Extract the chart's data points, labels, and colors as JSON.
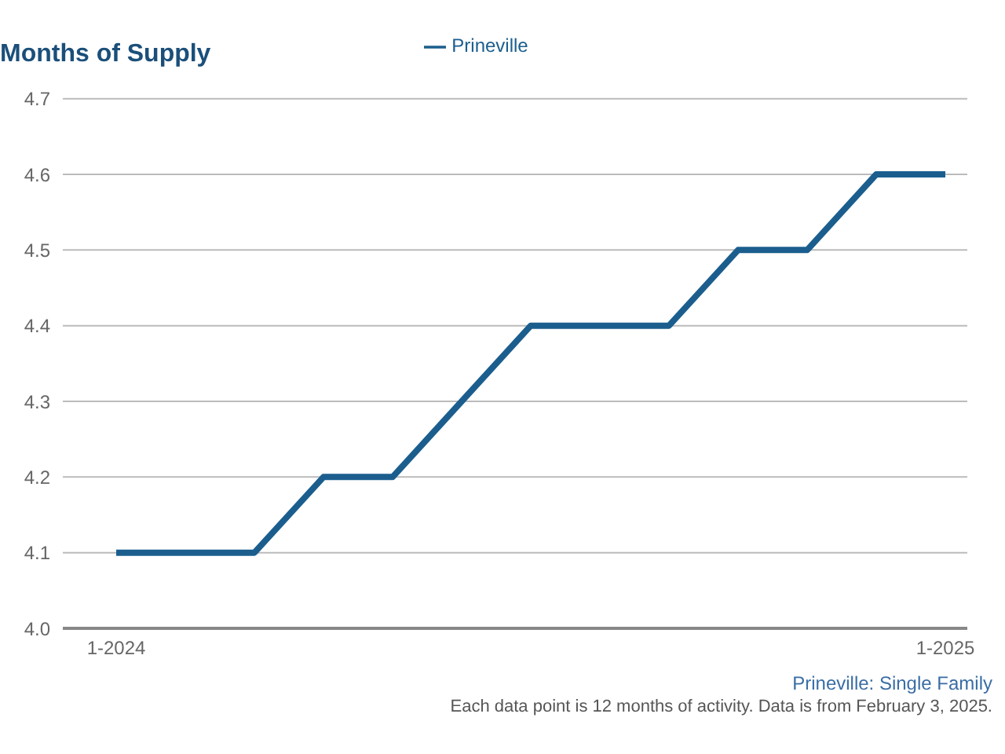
{
  "chart_data": {
    "type": "line",
    "title": "Months of Supply",
    "categories": [
      "1-2024",
      null,
      null,
      null,
      null,
      null,
      null,
      null,
      null,
      null,
      null,
      null,
      "1-2025"
    ],
    "series": [
      {
        "name": "Prineville",
        "color": "#1b5e8e",
        "values": [
          4.1,
          4.1,
          4.1,
          4.2,
          4.2,
          4.3,
          4.4,
          4.4,
          4.4,
          4.5,
          4.5,
          4.6,
          4.6
        ]
      }
    ],
    "ylim": [
      4.0,
      4.7
    ],
    "yticks": [
      {
        "value": 4.0,
        "label": "4.0"
      },
      4.1,
      4.2,
      4.3,
      4.4,
      4.5,
      4.6,
      4.7
    ],
    "grid": "y",
    "legend": "top",
    "marker": "none",
    "line_style": "solid",
    "annotations": [
      "Prineville: Single Family",
      "Each data point is 12 months of activity. Data is from February 3, 2025."
    ]
  }
}
